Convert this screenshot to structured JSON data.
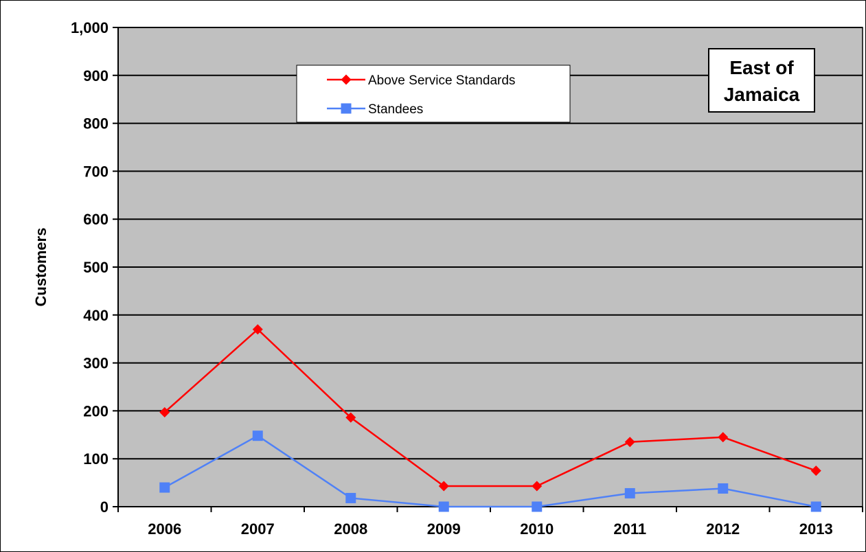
{
  "chart_data": {
    "type": "line",
    "title": "",
    "region_label_lines": [
      "East of",
      "Jamaica"
    ],
    "xlabel": "",
    "ylabel": "Customers",
    "categories": [
      "2006",
      "2007",
      "2008",
      "2009",
      "2010",
      "2011",
      "2012",
      "2013"
    ],
    "ylim": [
      0,
      1000
    ],
    "yticks": [
      0,
      100,
      200,
      300,
      400,
      500,
      600,
      700,
      800,
      900,
      1000
    ],
    "ytick_labels": [
      "0",
      "100",
      "200",
      "300",
      "400",
      "500",
      "600",
      "700",
      "800",
      "900",
      "1,000"
    ],
    "grid": true,
    "plot_background": "#c0c0c0",
    "legend_position": "top-center",
    "series": [
      {
        "name": "Above Service Standards",
        "color": "#ff0000",
        "marker": "diamond",
        "values": [
          197,
          370,
          186,
          43,
          43,
          135,
          145,
          75
        ]
      },
      {
        "name": "Standees",
        "color": "#4f81f7",
        "marker": "square",
        "values": [
          40,
          148,
          18,
          0,
          0,
          28,
          38,
          0
        ]
      }
    ]
  }
}
